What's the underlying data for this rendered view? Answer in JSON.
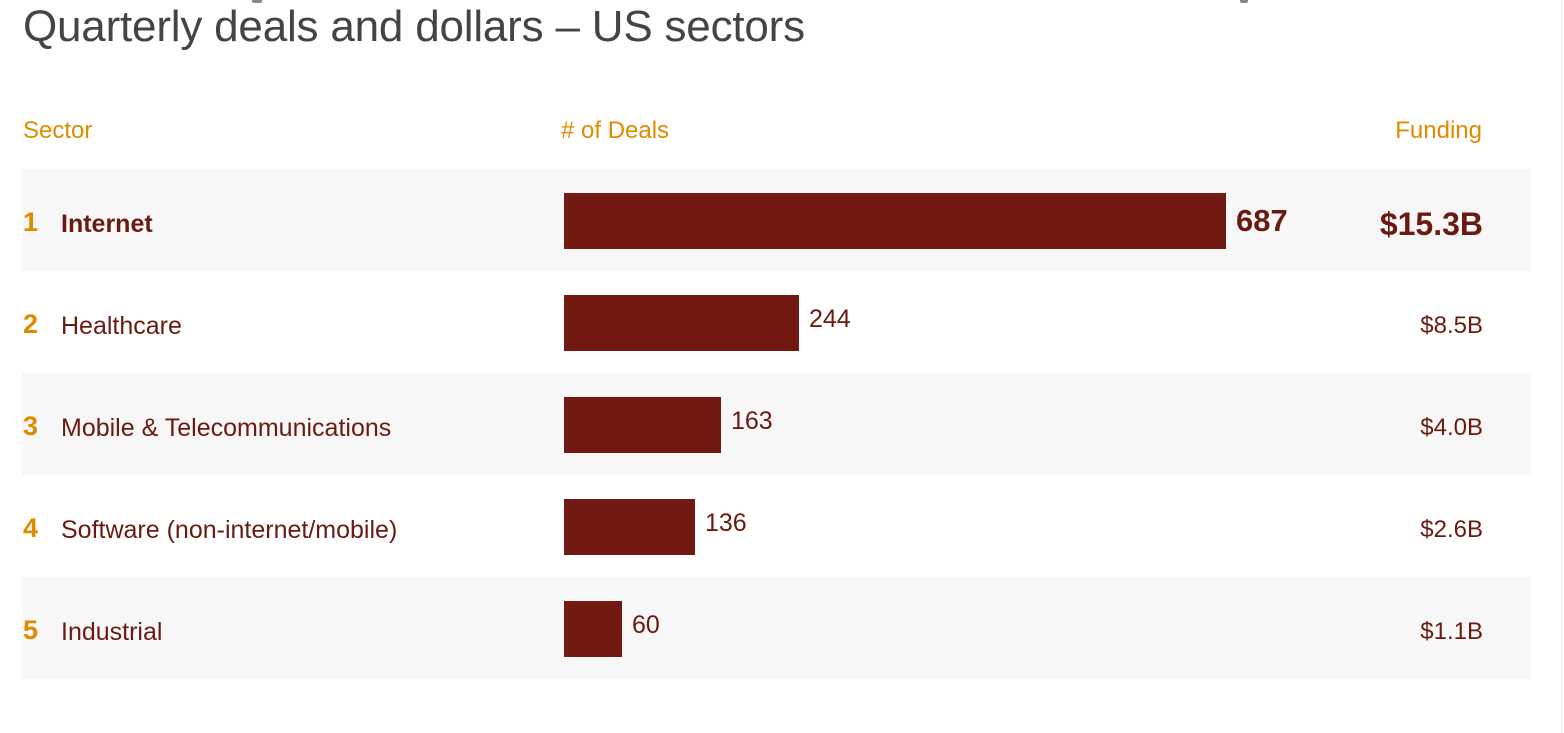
{
  "title": "Quarterly deals and dollars – US sectors",
  "colors": {
    "bar": "#721A12",
    "text": "#6B1A12",
    "accent": "#E08A00",
    "title": "#444444",
    "row_shade": "#F7F7F7"
  },
  "headers": {
    "sector": "Sector",
    "deals": "# of Deals",
    "funding": "Funding"
  },
  "chart_data": {
    "type": "bar",
    "orientation": "horizontal",
    "title": "Quarterly deals and dollars – US sectors",
    "xlabel": "# of Deals",
    "ylabel": "Sector",
    "xlim": [
      0,
      687
    ],
    "grid": false,
    "categories": [
      "Internet",
      "Healthcare",
      "Mobile & Telecommunications",
      "Software (non-internet/mobile)",
      "Industrial"
    ],
    "ranks": [
      "1",
      "2",
      "3",
      "4",
      "5"
    ],
    "values": [
      687,
      244,
      163,
      136,
      60
    ],
    "value_labels": [
      "687",
      "244",
      "163",
      "136",
      "60"
    ],
    "funding": [
      "$15.3B",
      "$8.5B",
      "$4.0B",
      "$2.6B",
      "$1.1B"
    ]
  }
}
